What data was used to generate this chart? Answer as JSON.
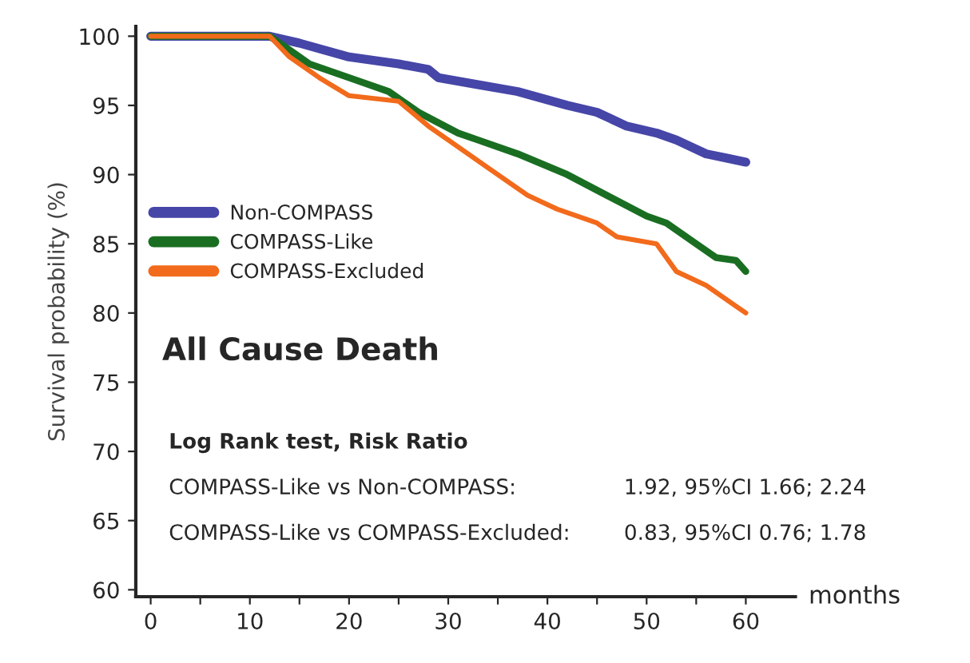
{
  "chart_data": {
    "type": "line",
    "ylabel": "Survival probability (%)",
    "xlabel": "months",
    "xlim": [
      -1.5,
      65
    ],
    "ylim": [
      59.5,
      100.7
    ],
    "xticks": [
      0,
      {
        "value": 5,
        "label": null
      },
      10,
      {
        "value": 15,
        "label": null
      },
      20,
      {
        "value": 25,
        "label": null
      },
      30,
      {
        "value": 35,
        "label": null
      },
      40,
      {
        "value": 45,
        "label": null
      },
      50,
      {
        "value": 55,
        "label": null
      },
      60
    ],
    "yticks": [
      60,
      65,
      70,
      75,
      80,
      85,
      90,
      95,
      100
    ],
    "grid": false,
    "legend": "center left",
    "series": [
      {
        "name": "Non-COMPASS",
        "color": "#4646a8",
        "x": [
          0,
          12,
          15,
          20,
          25,
          28,
          29,
          33,
          37,
          42,
          45,
          48,
          51,
          53,
          56,
          58,
          60
        ],
        "values": [
          100,
          100,
          99.5,
          98.5,
          98,
          97.6,
          97,
          96.5,
          96,
          95,
          94.5,
          93.5,
          93,
          92.5,
          91.5,
          91.2,
          90.9
        ]
      },
      {
        "name": "COMPASS-Like",
        "color": "#1a6e22",
        "x": [
          0,
          12,
          14,
          16,
          20,
          24,
          27,
          31,
          33,
          37,
          42,
          46,
          50,
          52,
          55,
          57,
          59,
          60
        ],
        "values": [
          100,
          100,
          99,
          98,
          97,
          96,
          94.5,
          93,
          92.5,
          91.5,
          90,
          88.5,
          87,
          86.5,
          85,
          84,
          83.8,
          83
        ]
      },
      {
        "name": "COMPASS-Excluded",
        "color": "#f26a1b",
        "x": [
          0,
          12,
          14,
          17,
          20,
          25,
          28,
          30,
          34,
          38,
          41,
          45,
          47,
          51,
          53,
          56,
          59,
          60
        ],
        "values": [
          100,
          100,
          98.5,
          97,
          95.7,
          95.3,
          93.5,
          92.5,
          90.5,
          88.5,
          87.5,
          86.5,
          85.5,
          85,
          83,
          82,
          80.5,
          80
        ]
      }
    ],
    "annotations": [
      "All Cause Death",
      "Log Rank test, Risk Ratio",
      "COMPASS-Like vs Non-COMPASS:",
      "1.92, 95%CI 1.66; 2.24",
      "COMPASS-Like vs COMPASS-Excluded:",
      "0.83, 95%CI 0.76; 1.78"
    ]
  }
}
